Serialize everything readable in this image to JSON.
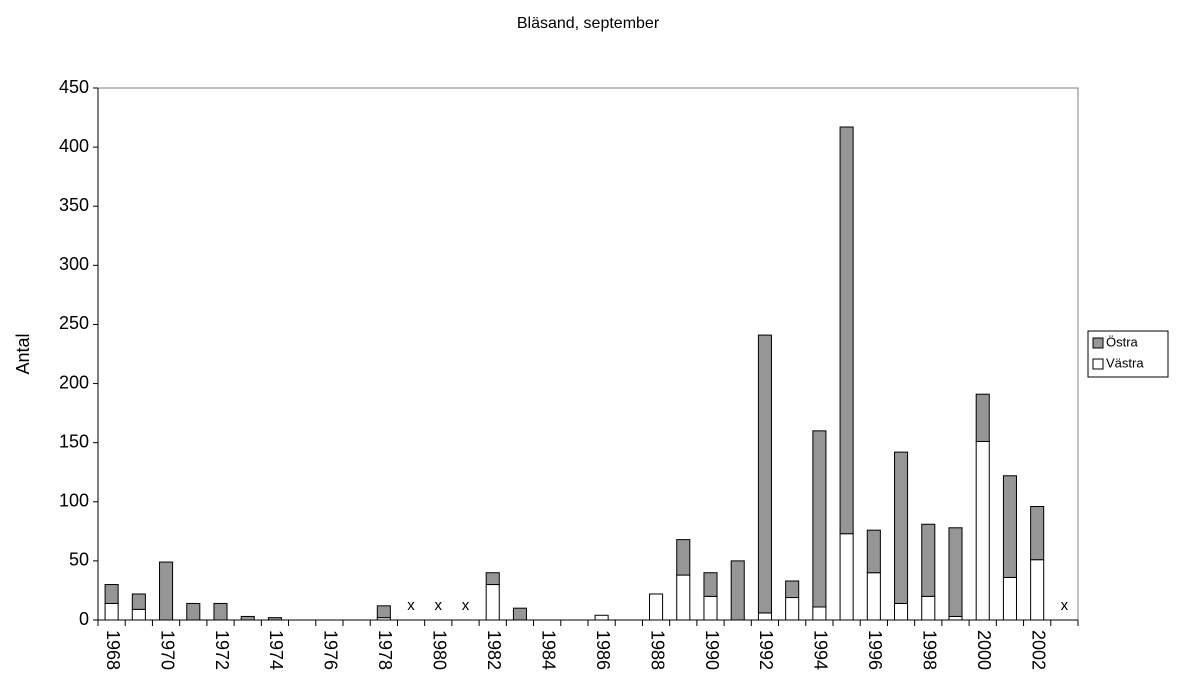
{
  "chart_data": {
    "type": "stacked_bar",
    "title": "Bläsand, september",
    "y_label": "Antal",
    "categories": [
      "1968",
      null,
      "1970",
      null,
      "1972",
      null,
      "1974",
      null,
      "1976",
      null,
      "1978",
      null,
      "1980",
      null,
      "1982",
      null,
      "1984",
      null,
      "1986",
      null,
      "1988",
      null,
      "1990",
      null,
      "1992",
      null,
      "1994",
      null,
      "1996",
      null,
      "1998",
      null,
      "2000",
      null,
      "2002",
      null
    ],
    "annotations": [
      null,
      null,
      null,
      null,
      null,
      null,
      null,
      null,
      null,
      null,
      null,
      "x",
      "x",
      "x",
      null,
      null,
      null,
      null,
      null,
      null,
      null,
      null,
      null,
      null,
      null,
      null,
      null,
      null,
      null,
      null,
      null,
      null,
      null,
      null,
      null,
      "x"
    ],
    "series": [
      {
        "name": "Västra",
        "color": "#ffffff",
        "values": [
          14,
          9,
          0,
          0,
          0,
          0,
          0,
          0,
          0,
          0,
          2,
          null,
          null,
          null,
          30,
          0,
          0,
          0,
          4,
          0,
          22,
          38,
          20,
          0,
          6,
          19,
          11,
          73,
          40,
          14,
          20,
          3,
          151,
          36,
          51,
          null
        ]
      },
      {
        "name": "Östra",
        "color": "#969696",
        "values": [
          16,
          13,
          49,
          14,
          14,
          3,
          2,
          0,
          0,
          0,
          10,
          null,
          null,
          null,
          10,
          10,
          0,
          0,
          0,
          0,
          0,
          30,
          20,
          50,
          235,
          14,
          149,
          344,
          36,
          128,
          61,
          75,
          40,
          86,
          45,
          null
        ]
      }
    ],
    "ylim": [
      0,
      450
    ],
    "yticks": [
      0,
      50,
      100,
      150,
      200,
      250,
      300,
      350,
      400,
      450
    ]
  }
}
